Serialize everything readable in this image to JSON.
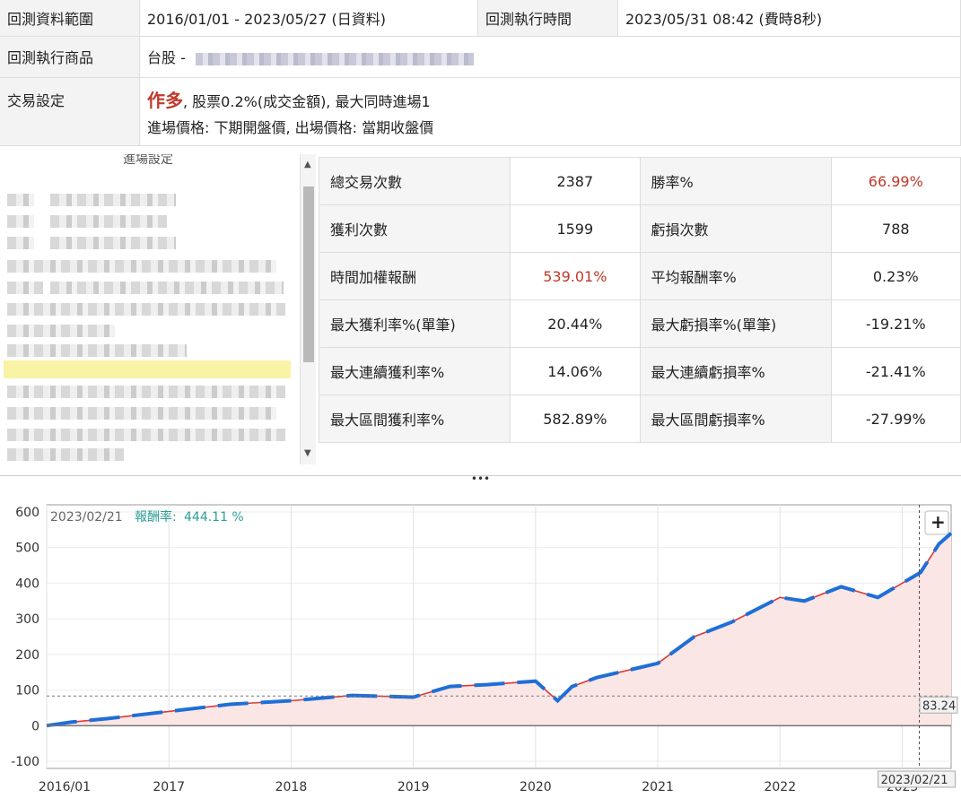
{
  "info": {
    "range_label": "回測資料範圍",
    "range_value": "2016/01/01 - 2023/05/27 (日資料)",
    "exec_time_label": "回測執行時間",
    "exec_time_value": "2023/05/31 08:42 (費時8秒)",
    "product_label": "回測執行商品",
    "product_value": "台股 -",
    "trade_label": "交易設定",
    "trade_direction": "作多",
    "trade_line1": ", 股票0.2%(成交金額), 最大同時進場1",
    "trade_line2": "進場價格: 下期開盤價, 出場價格: 當期收盤價"
  },
  "left_panel": {
    "title": "進場設定"
  },
  "stats": [
    {
      "k1": "總交易次數",
      "v1": "2387",
      "k2": "勝率%",
      "v2": "66.99%",
      "v2_red": true
    },
    {
      "k1": "獲利次數",
      "v1": "1599",
      "k2": "虧損次數",
      "v2": "788"
    },
    {
      "k1": "時間加權報酬",
      "v1": "539.01%",
      "v1_red": true,
      "k2": "平均報酬率%",
      "v2": "0.23%"
    },
    {
      "k1": "最大獲利率%(單筆)",
      "v1": "20.44%",
      "k2": "最大虧損率%(單筆)",
      "v2": "-19.21%"
    },
    {
      "k1": "最大連續獲利率%",
      "v1": "14.06%",
      "k2": "最大連續虧損率%",
      "v2": "-21.41%"
    },
    {
      "k1": "最大區間獲利率%",
      "v1": "582.89%",
      "k2": "最大區間虧損率%",
      "v2": "-27.99%"
    }
  ],
  "divider": "•••",
  "chart": {
    "tooltip_date": "2023/02/21",
    "tooltip_label": "報酬率:",
    "tooltip_value": "444.11 %",
    "cursor_value": "83.24",
    "cursor_date": "2023/02/21",
    "zoom_label": "+"
  },
  "chart_data": {
    "type": "area",
    "xlabel": "",
    "ylabel": "",
    "ylim": [
      -120,
      620
    ],
    "yticks": [
      600,
      500,
      400,
      300,
      200,
      100,
      0,
      -100
    ],
    "xticks": [
      "2016/01",
      "2017",
      "2018",
      "2019",
      "2020",
      "2021",
      "2022",
      "2023"
    ],
    "x": [
      2016.0,
      2016.2,
      2016.5,
      2017.0,
      2017.5,
      2018.0,
      2018.5,
      2019.0,
      2019.3,
      2019.6,
      2020.0,
      2020.18,
      2020.3,
      2020.5,
      2021.0,
      2021.3,
      2021.6,
      2022.0,
      2022.2,
      2022.5,
      2022.8,
      2023.0,
      2023.15,
      2023.3,
      2023.4
    ],
    "series": [
      {
        "values": [
          0,
          10,
          20,
          40,
          60,
          70,
          85,
          80,
          110,
          115,
          125,
          70,
          110,
          135,
          175,
          250,
          290,
          360,
          350,
          390,
          360,
          400,
          430,
          510,
          540
        ]
      }
    ],
    "colors": {
      "line_up": "#1f6fd6",
      "line_down": "#d83a3a",
      "fill": "#fbe6e6",
      "tooltip": "#2b9e97"
    }
  }
}
